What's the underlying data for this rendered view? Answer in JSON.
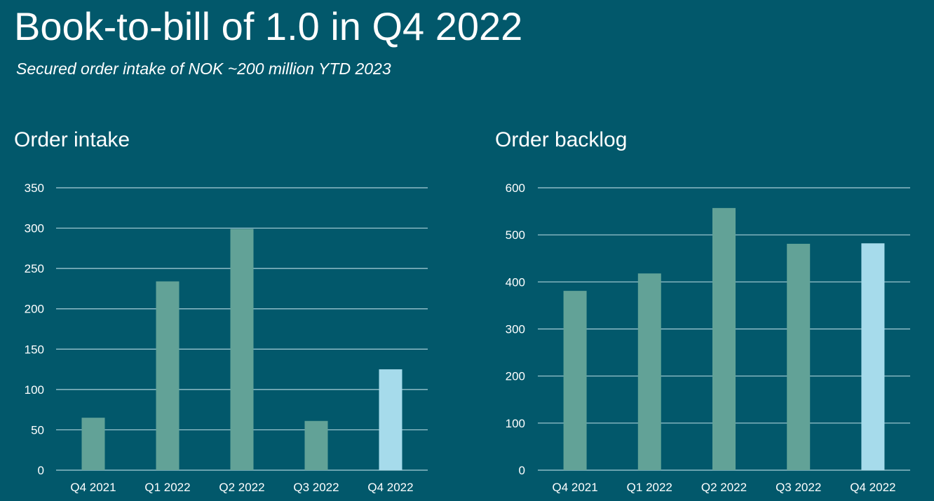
{
  "header": {
    "title": "Book-to-bill of 1.0 in Q4 2022",
    "subtitle": "Secured order intake of NOK ~200 million YTD 2023"
  },
  "colors": {
    "background": "#02586b",
    "bar": "#62a297",
    "bar_highlight": "#a6dbeb",
    "gridline": "#a9cfd8"
  },
  "chart_data": [
    {
      "type": "bar",
      "title": "Order intake",
      "categories": [
        "Q4 2021",
        "Q1 2022",
        "Q2 2022",
        "Q3 2022",
        "Q4 2022"
      ],
      "values": [
        65,
        234,
        299,
        61,
        125
      ],
      "highlight_index": 4,
      "yticks": [
        0,
        50,
        100,
        150,
        200,
        250,
        300,
        350
      ],
      "ylim": [
        0,
        350
      ],
      "xlabel": "",
      "ylabel": "",
      "legend": "none",
      "grid": true
    },
    {
      "type": "bar",
      "title": "Order backlog",
      "categories": [
        "Q4 2021",
        "Q1 2022",
        "Q2 2022",
        "Q3 2022",
        "Q4 2022"
      ],
      "values": [
        381,
        418,
        557,
        481,
        482
      ],
      "highlight_index": 4,
      "yticks": [
        0,
        100,
        200,
        300,
        400,
        500,
        600
      ],
      "ylim": [
        0,
        600
      ],
      "xlabel": "",
      "ylabel": "",
      "legend": "none",
      "grid": true
    }
  ]
}
